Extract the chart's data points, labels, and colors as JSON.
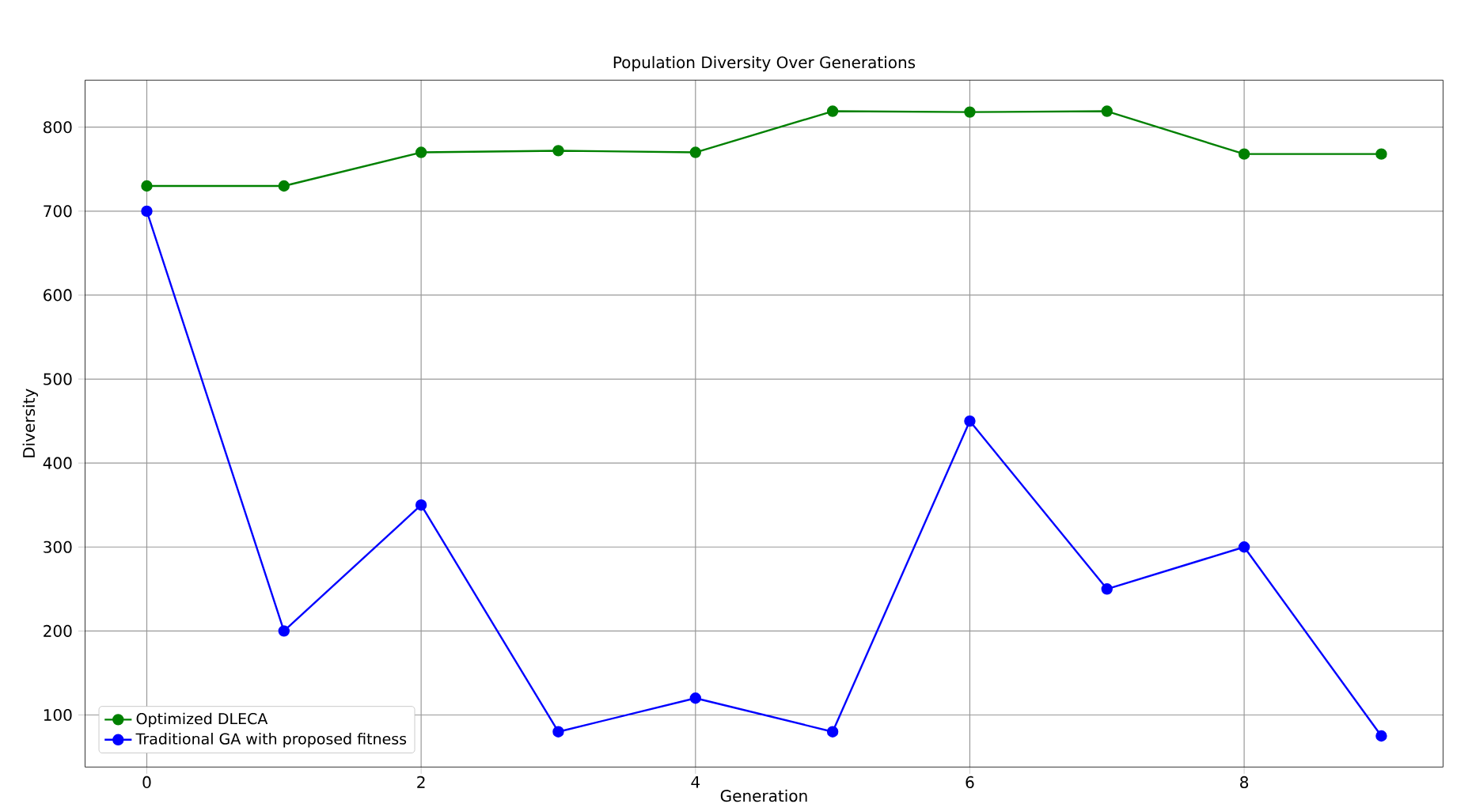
{
  "chart_data": {
    "type": "line",
    "title": "Population Diversity Over Generations",
    "xlabel": "Generation",
    "ylabel": "Diversity",
    "x": [
      0,
      1,
      2,
      3,
      4,
      5,
      6,
      7,
      8,
      9
    ],
    "series": [
      {
        "name": "Optimized DLECA",
        "color": "#008000",
        "values": [
          730,
          730,
          770,
          772,
          770,
          819,
          818,
          819,
          768,
          768
        ]
      },
      {
        "name": "Traditional GA with proposed fitness",
        "color": "#0000ff",
        "values": [
          700,
          200,
          350,
          80,
          120,
          80,
          450,
          250,
          300,
          75
        ]
      }
    ],
    "xlim": [
      -0.45,
      9.45
    ],
    "xticks": [
      0,
      2,
      4,
      6,
      8
    ],
    "ylim": [
      38,
      856
    ],
    "yticks": [
      100,
      200,
      300,
      400,
      500,
      600,
      700,
      800
    ],
    "grid": true,
    "legend": "bottom left",
    "marker": "circle",
    "line_style": "solid"
  }
}
